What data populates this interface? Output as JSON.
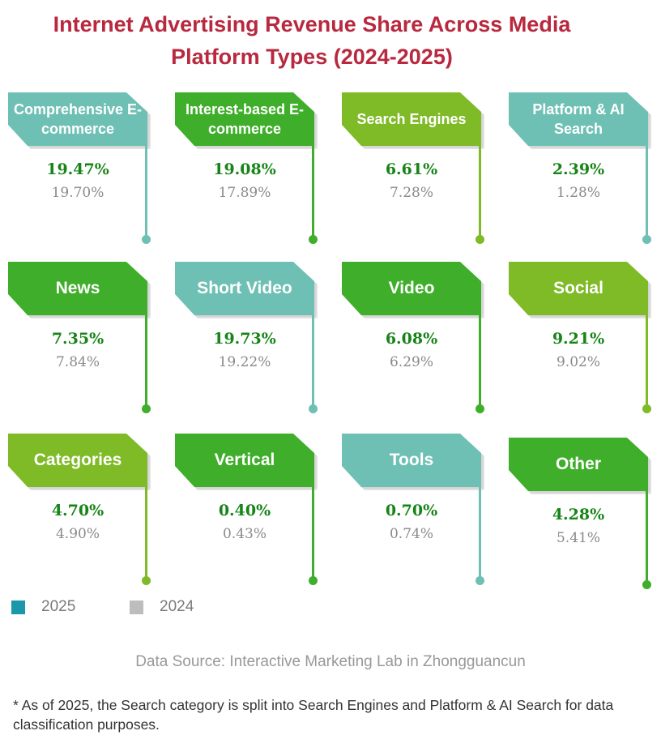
{
  "title_line1": "Internet Advertising Revenue Share Across Media",
  "title_line2": "Platform Types (2024-2025)",
  "colors": {
    "teal": "#6fc0b4",
    "green": "#3fae2a",
    "lime": "#7fba27",
    "legend_2025": "#1a97a8",
    "legend_2024": "#bdbdbd"
  },
  "cards": [
    {
      "label": "Comprehensive E-commerce",
      "v2025": "19.47%",
      "v2024": "19.70%",
      "color": "teal"
    },
    {
      "label": "Interest-based E-commerce",
      "v2025": "19.08%",
      "v2024": "17.89%",
      "color": "green"
    },
    {
      "label": "Search Engines",
      "v2025": "6.61%",
      "v2024": "7.28%",
      "color": "lime"
    },
    {
      "label": "Platform & AI Search",
      "v2025": "2.39%",
      "v2024": "1.28%",
      "color": "teal"
    },
    {
      "label": "News",
      "v2025": "7.35%",
      "v2024": "7.84%",
      "color": "green"
    },
    {
      "label": "Short Video",
      "v2025": "19.73%",
      "v2024": "19.22%",
      "color": "teal"
    },
    {
      "label": "Video",
      "v2025": "6.08%",
      "v2024": "6.29%",
      "color": "green"
    },
    {
      "label": "Social",
      "v2025": "9.21%",
      "v2024": "9.02%",
      "color": "lime"
    },
    {
      "label": "Categories",
      "v2025": "4.70%",
      "v2024": "4.90%",
      "color": "lime"
    },
    {
      "label": "Vertical",
      "v2025": "0.40%",
      "v2024": "0.43%",
      "color": "green"
    },
    {
      "label": "Tools",
      "v2025": "0.70%",
      "v2024": "0.74%",
      "color": "teal"
    },
    {
      "label": "Other",
      "v2025": "4.28%",
      "v2024": "5.41%",
      "color": "green"
    }
  ],
  "legend": [
    {
      "label": "2025"
    },
    {
      "label": "2024"
    }
  ],
  "source": "Data Source:  Interactive Marketing Lab in Zhongguancun",
  "note": "*  As of 2025, the Search category is split into Search Engines and Platform & AI Search for data classification purposes."
}
